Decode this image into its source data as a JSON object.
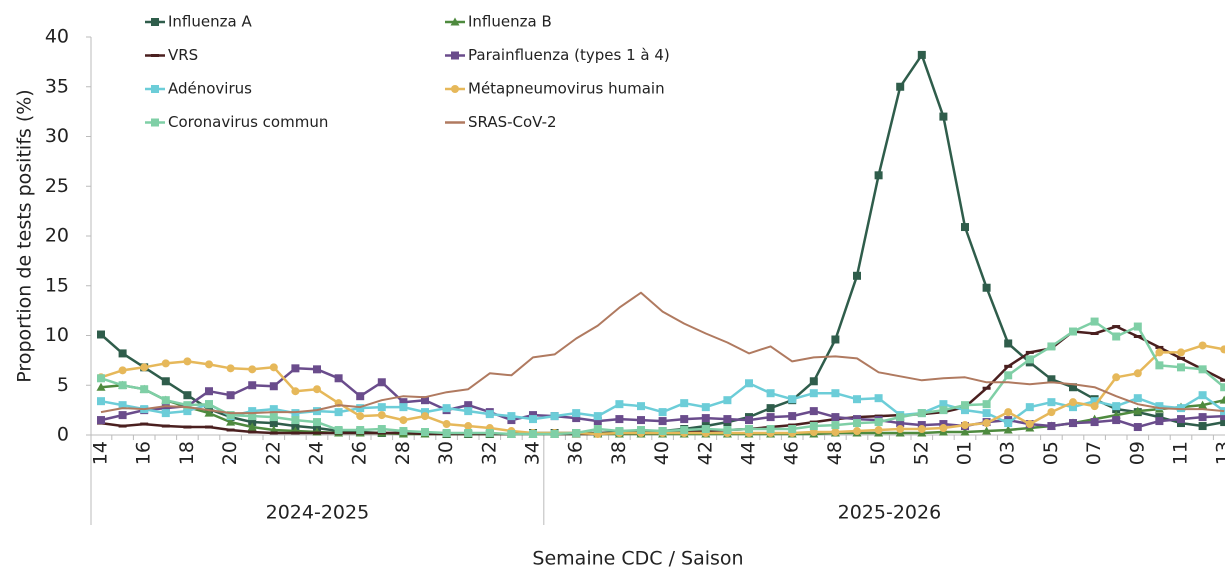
{
  "chart_data": {
    "type": "line",
    "y_label": "Proportion de tests positifs (%)",
    "x_label": "Semaine CDC / Saison",
    "ylim": [
      0,
      40
    ],
    "yticks": [
      0,
      5,
      10,
      15,
      20,
      25,
      30,
      35,
      40
    ],
    "grid": false,
    "categories": [
      "14",
      null,
      "16",
      null,
      "18",
      null,
      "20",
      null,
      "22",
      null,
      "24",
      null,
      "26",
      null,
      "28",
      null,
      "30",
      null,
      "32",
      null,
      "34",
      null,
      "36",
      null,
      "38",
      null,
      "40",
      null,
      "42",
      null,
      "44",
      null,
      "46",
      null,
      "48",
      null,
      "50",
      null,
      "52",
      null,
      "01",
      null,
      "03",
      null,
      "05",
      null,
      "07",
      null,
      "09",
      null,
      "11",
      null,
      "13"
    ],
    "seasons": [
      {
        "label": "2024-2025",
        "last_week": "34"
      },
      {
        "label": "2025-2026"
      }
    ],
    "series": [
      {
        "name": "Influenza A",
        "color": "#2f5d4b",
        "marker": "square",
        "values": [
          10.1,
          8.2,
          6.8,
          5.4,
          4.0,
          2.6,
          1.8,
          1.3,
          1.2,
          0.9,
          0.7,
          0.4,
          0.3,
          0.2,
          0.2,
          0.2,
          0.1,
          0.1,
          0.1,
          0.1,
          0.2,
          0.2,
          0.2,
          0.2,
          0.3,
          0.3,
          0.4,
          0.6,
          0.9,
          1.3,
          1.8,
          2.7,
          3.5,
          5.4,
          9.6,
          16.0,
          26.1,
          35.0,
          38.2,
          32.0,
          20.9,
          14.8,
          9.2,
          7.3,
          5.6,
          4.8,
          3.6,
          2.6,
          2.3,
          1.8,
          1.2,
          0.9,
          1.3
        ]
      },
      {
        "name": "Influenza B",
        "color": "#4e8a3e",
        "marker": "triangle",
        "values": [
          4.8,
          5.0,
          4.6,
          3.5,
          2.8,
          2.2,
          1.3,
          0.8,
          0.5,
          0.4,
          0.3,
          0.2,
          0.2,
          0.2,
          0.1,
          0.1,
          0.1,
          0.1,
          0.1,
          0.1,
          0.1,
          0.1,
          0.1,
          0.1,
          0.1,
          0.1,
          0.1,
          0.1,
          0.1,
          0.1,
          0.1,
          0.1,
          0.1,
          0.1,
          0.2,
          0.2,
          0.2,
          0.2,
          0.2,
          0.3,
          0.3,
          0.4,
          0.5,
          0.7,
          0.9,
          1.2,
          1.6,
          2.0,
          2.4,
          2.6,
          2.8,
          3.0,
          3.5
        ]
      },
      {
        "name": "VRS",
        "color": "#4a1f1f",
        "marker": "dash",
        "values": [
          1.2,
          0.9,
          1.1,
          0.9,
          0.8,
          0.8,
          0.5,
          0.3,
          0.2,
          0.2,
          0.2,
          0.2,
          0.2,
          0.2,
          0.2,
          0.1,
          0.1,
          0.1,
          0.1,
          0.1,
          0.1,
          0.1,
          0.1,
          0.1,
          0.2,
          0.2,
          0.2,
          0.3,
          0.4,
          0.5,
          0.6,
          0.8,
          1.0,
          1.3,
          1.6,
          1.8,
          1.9,
          2.0,
          2.1,
          2.3,
          2.8,
          4.7,
          6.9,
          8.3,
          8.7,
          10.4,
          10.2,
          10.9,
          9.9,
          8.8,
          7.7,
          6.6,
          5.5
        ]
      },
      {
        "name": "Parainfluenza (types 1 à 4)",
        "color": "#6a4c8c",
        "marker": "square",
        "values": [
          1.5,
          2.0,
          2.5,
          2.7,
          2.9,
          4.4,
          4.0,
          5.0,
          4.9,
          6.7,
          6.6,
          5.7,
          3.9,
          5.3,
          3.3,
          3.5,
          2.5,
          3.0,
          2.3,
          1.5,
          2.0,
          1.9,
          1.7,
          1.4,
          1.6,
          1.5,
          1.4,
          1.6,
          1.7,
          1.6,
          1.5,
          1.8,
          1.9,
          2.4,
          1.8,
          1.6,
          1.5,
          1.2,
          1.0,
          1.1,
          0.9,
          1.3,
          1.5,
          1.1,
          0.9,
          1.2,
          1.3,
          1.5,
          0.8,
          1.4,
          1.6,
          1.8,
          1.9
        ]
      },
      {
        "name": "Adénovirus",
        "color": "#6ccdd8",
        "marker": "square",
        "values": [
          3.4,
          3.0,
          2.6,
          2.2,
          2.4,
          3.1,
          1.9,
          2.4,
          2.6,
          2.2,
          2.4,
          2.3,
          2.7,
          2.8,
          2.8,
          2.3,
          2.7,
          2.4,
          2.1,
          1.9,
          1.6,
          1.9,
          2.2,
          1.9,
          3.1,
          2.9,
          2.3,
          3.2,
          2.8,
          3.5,
          5.2,
          4.2,
          3.6,
          4.2,
          4.2,
          3.6,
          3.7,
          2.0,
          2.2,
          3.1,
          2.5,
          2.2,
          1.2,
          2.8,
          3.3,
          2.8,
          3.4,
          2.9,
          3.7,
          2.9,
          2.7,
          4.0,
          2.4
        ]
      },
      {
        "name": "Métapneumovirus humain",
        "color": "#e6b85a",
        "marker": "circle",
        "values": [
          5.8,
          6.5,
          6.8,
          7.2,
          7.4,
          7.1,
          6.7,
          6.6,
          6.8,
          4.4,
          4.6,
          3.2,
          1.9,
          2.0,
          1.5,
          1.9,
          1.1,
          0.9,
          0.7,
          0.4,
          0.2,
          0.2,
          0.2,
          0.1,
          0.2,
          0.2,
          0.2,
          0.2,
          0.2,
          0.2,
          0.2,
          0.2,
          0.2,
          0.3,
          0.3,
          0.4,
          0.5,
          0.6,
          0.6,
          0.7,
          1.0,
          1.2,
          2.3,
          1.1,
          2.3,
          3.3,
          2.9,
          5.8,
          6.2,
          8.3,
          8.3,
          9.0,
          8.6
        ]
      },
      {
        "name": "Coronavirus commun",
        "color": "#7fcfa6",
        "marker": "square",
        "values": [
          5.7,
          5.0,
          4.6,
          3.5,
          3.0,
          3.1,
          2.0,
          1.9,
          1.8,
          1.5,
          1.3,
          0.5,
          0.5,
          0.6,
          0.4,
          0.3,
          0.2,
          0.2,
          0.2,
          0.1,
          0.1,
          0.1,
          0.2,
          0.6,
          0.4,
          0.5,
          0.4,
          0.5,
          0.6,
          0.5,
          0.6,
          0.6,
          0.6,
          0.9,
          1.0,
          1.2,
          1.3,
          1.8,
          2.2,
          2.5,
          3.0,
          3.1,
          6.0,
          7.6,
          8.9,
          10.4,
          11.4,
          9.9,
          10.9,
          7.0,
          6.8,
          6.6,
          4.8
        ]
      },
      {
        "name": "SRAS-CoV-2",
        "color": "#b07a60",
        "marker": "none",
        "values": [
          2.3,
          2.7,
          2.6,
          2.9,
          2.8,
          2.5,
          2.2,
          2.2,
          2.3,
          2.3,
          2.5,
          3.0,
          2.8,
          3.5,
          3.9,
          3.8,
          4.3,
          4.6,
          6.2,
          6.0,
          7.8,
          8.1,
          9.7,
          11.0,
          12.8,
          14.3,
          12.4,
          11.2,
          10.2,
          9.3,
          8.2,
          8.9,
          7.4,
          7.8,
          7.9,
          7.7,
          6.3,
          5.9,
          5.5,
          5.7,
          5.8,
          5.3,
          5.3,
          5.1,
          5.3,
          5.1,
          4.8,
          3.9,
          3.1,
          2.7,
          2.6,
          2.6,
          2.4
        ]
      }
    ]
  }
}
